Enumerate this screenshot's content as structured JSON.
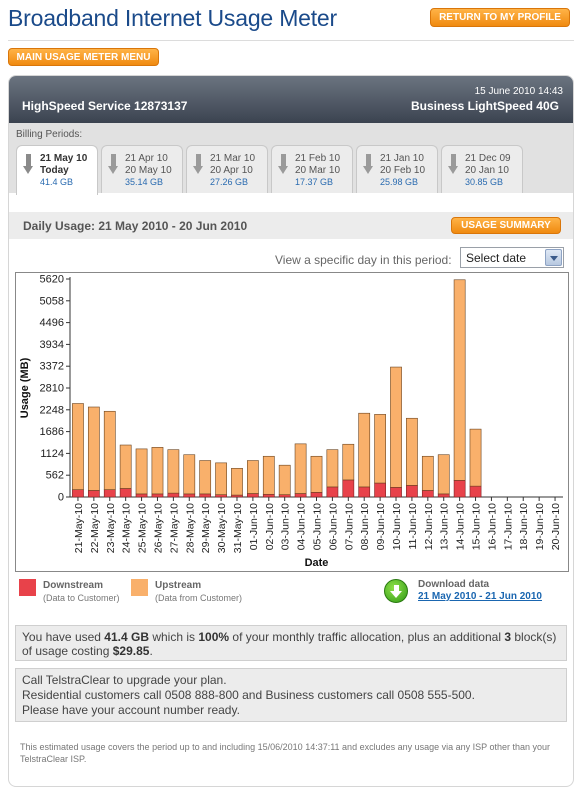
{
  "page": {
    "title": "Broadband Internet Usage Meter",
    "return_label": "RETURN TO MY PROFILE",
    "main_menu_label": "MAIN USAGE METER MENU"
  },
  "account": {
    "date_time": "15 June 2010 14:43",
    "service": "HighSpeed Service 12873137",
    "plan": "Business LightSpeed 40G"
  },
  "billing": {
    "label": "Billing Periods:",
    "tabs": [
      {
        "line1": "21 May 10",
        "line2": "Today",
        "usage": "41.4 GB",
        "active": true
      },
      {
        "line1": "21 Apr 10",
        "line2": "20 May 10",
        "usage": "35.14 GB",
        "active": false
      },
      {
        "line1": "21 Mar 10",
        "line2": "20 Apr 10",
        "usage": "27.26 GB",
        "active": false
      },
      {
        "line1": "21 Feb 10",
        "line2": "20 Mar 10",
        "usage": "17.37 GB",
        "active": false
      },
      {
        "line1": "21 Jan 10",
        "line2": "20 Feb 10",
        "usage": "25.98 GB",
        "active": false
      },
      {
        "line1": "21 Dec 09",
        "line2": "20 Jan 10",
        "usage": "30.85 GB",
        "active": false
      }
    ]
  },
  "daily": {
    "title": "Daily Usage: 21 May 2010 - 20 Jun 2010",
    "summary_label": "USAGE SUMMARY",
    "view_label": "View a specific day in this period:",
    "select_value": "Select date"
  },
  "chart_data": {
    "type": "bar",
    "stacked": true,
    "title": "",
    "xlabel": "Date",
    "ylabel": "Usage (MB)",
    "ylim": [
      0,
      5620
    ],
    "yticks": [
      0,
      562,
      1124,
      1686,
      2248,
      2810,
      3372,
      3934,
      4496,
      5058,
      5620
    ],
    "grid": false,
    "categories": [
      "21-May-10",
      "22-May-10",
      "23-May-10",
      "24-May-10",
      "25-May-10",
      "26-May-10",
      "27-May-10",
      "28-May-10",
      "29-May-10",
      "30-May-10",
      "31-May-10",
      "01-Jun-10",
      "02-Jun-10",
      "03-Jun-10",
      "04-Jun-10",
      "05-Jun-10",
      "06-Jun-10",
      "07-Jun-10",
      "08-Jun-10",
      "09-Jun-10",
      "10-Jun-10",
      "11-Jun-10",
      "12-Jun-10",
      "13-Jun-10",
      "14-Jun-10",
      "15-Jun-10",
      "16-Jun-10",
      "17-Jun-10",
      "18-Jun-10",
      "19-Jun-10",
      "20-Jun-10"
    ],
    "series": [
      {
        "name": "Downstream",
        "color": "#e8424a",
        "values": [
          190,
          170,
          190,
          220,
          80,
          80,
          100,
          80,
          80,
          60,
          50,
          90,
          70,
          60,
          90,
          120,
          260,
          440,
          260,
          360,
          250,
          300,
          170,
          80,
          430,
          280,
          0,
          0,
          0,
          0,
          0
        ]
      },
      {
        "name": "Upstream",
        "color": "#f9b06b",
        "values": [
          2220,
          2150,
          2020,
          1120,
          1160,
          1200,
          1120,
          1010,
          860,
          820,
          690,
          850,
          980,
          760,
          1280,
          930,
          960,
          920,
          1900,
          1770,
          3100,
          1730,
          880,
          1010,
          5170,
          1470,
          0,
          0,
          0,
          0,
          0
        ]
      }
    ],
    "legend_placement": "bottom-left",
    "legend": [
      {
        "name": "Downstream",
        "sub": "(Data to Customer)",
        "color": "#e8424a"
      },
      {
        "name": "Upstream",
        "sub": "(Data from Customer)",
        "color": "#f9b06b"
      }
    ]
  },
  "download": {
    "label": "Download data",
    "link": "21 May 2010 - 21 Jun 2010"
  },
  "usage_summary": {
    "prefix": "You have used ",
    "amount": "41.4 GB",
    "middle": " which is ",
    "percent": "100%",
    "middle2": " of your monthly traffic allocation, plus an additional ",
    "blocks": "3",
    "middle3": " block(s) of usage costing ",
    "cost": "$29.85",
    "suffix": "."
  },
  "call": {
    "line1": "Call TelstraClear to upgrade your plan.",
    "line2": "Residential customers call 0508 888-800 and Business customers call 0508 555-500.",
    "line3": "Please have your account number ready."
  },
  "footnote": "This estimated usage covers the period up to and including 15/06/2010 14:37:11 and excludes any usage via any ISP other than your TelstraClear ISP."
}
